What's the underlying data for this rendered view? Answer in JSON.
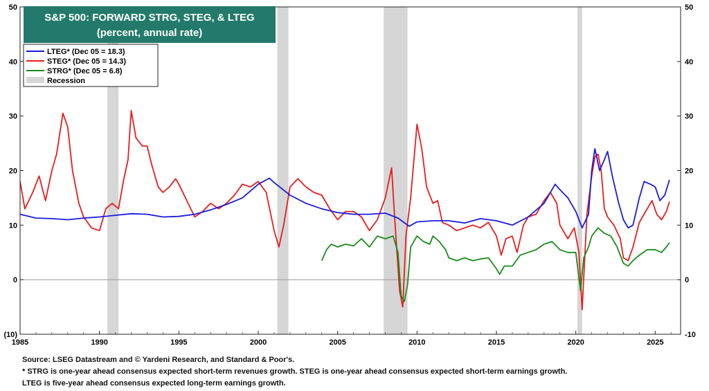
{
  "chart_data": {
    "type": "line",
    "title": "S&P 500: FORWARD STRG, STEG, & LTEG",
    "subtitle": "(percent, annual rate)",
    "xlim": [
      1985,
      2026.6
    ],
    "ylim": [
      -10,
      50
    ],
    "x_ticks": [
      1985,
      1990,
      1995,
      2000,
      2005,
      2010,
      2015,
      2020,
      2025
    ],
    "y_ticks": [
      -10,
      0,
      10,
      20,
      30,
      40,
      50
    ],
    "y_tick_labels_left": [
      "(10)",
      "0",
      "10",
      "20",
      "30",
      "40",
      "50"
    ],
    "y_tick_labels_right": [
      "-10",
      "0",
      "10",
      "20",
      "30",
      "40",
      "50"
    ],
    "grid": false,
    "zero_line": 0,
    "legend_position": "top-left",
    "recessions": [
      [
        1990.5,
        1991.2
      ],
      [
        2001.2,
        2001.9
      ],
      [
        2007.9,
        2009.4
      ],
      [
        2020.1,
        2020.4
      ]
    ],
    "series": [
      {
        "name": "LTEG* (Dec 05 = 18.3)",
        "color": "#1a1adc",
        "points": [
          [
            1985,
            12.0
          ],
          [
            1986,
            11.3
          ],
          [
            1987,
            11.2
          ],
          [
            1988,
            11.0
          ],
          [
            1989,
            11.3
          ],
          [
            1990,
            11.5
          ],
          [
            1991,
            11.8
          ],
          [
            1992,
            12.1
          ],
          [
            1993,
            12.0
          ],
          [
            1994,
            11.5
          ],
          [
            1995,
            11.6
          ],
          [
            1996,
            12.0
          ],
          [
            1997,
            12.8
          ],
          [
            1998,
            13.8
          ],
          [
            1999,
            15.0
          ],
          [
            2000,
            17.5
          ],
          [
            2000.7,
            18.6
          ],
          [
            2001,
            17.8
          ],
          [
            2002,
            15.5
          ],
          [
            2003,
            14.0
          ],
          [
            2004,
            13.0
          ],
          [
            2005,
            12.3
          ],
          [
            2006,
            12.0
          ],
          [
            2007,
            12.0
          ],
          [
            2008,
            12.2
          ],
          [
            2008.8,
            11.3
          ],
          [
            2009.5,
            9.8
          ],
          [
            2010,
            10.6
          ],
          [
            2011,
            10.8
          ],
          [
            2012,
            10.8
          ],
          [
            2013,
            10.4
          ],
          [
            2014,
            11.2
          ],
          [
            2015,
            10.8
          ],
          [
            2016,
            10.0
          ],
          [
            2017,
            11.5
          ],
          [
            2018,
            14.0
          ],
          [
            2018.7,
            17.5
          ],
          [
            2019,
            16.5
          ],
          [
            2019.5,
            15.0
          ],
          [
            2020,
            12.5
          ],
          [
            2020.4,
            9.5
          ],
          [
            2020.8,
            12.0
          ],
          [
            2021.0,
            20.0
          ],
          [
            2021.2,
            24.0
          ],
          [
            2021.5,
            20.0
          ],
          [
            2021.8,
            22.0
          ],
          [
            2022,
            23.5
          ],
          [
            2022.3,
            19.0
          ],
          [
            2022.7,
            14.0
          ],
          [
            2023,
            11.0
          ],
          [
            2023.3,
            9.5
          ],
          [
            2023.6,
            10.0
          ],
          [
            2024.0,
            15.0
          ],
          [
            2024.3,
            18.0
          ],
          [
            2024.7,
            17.5
          ],
          [
            2025.0,
            17.0
          ],
          [
            2025.3,
            14.5
          ],
          [
            2025.6,
            15.5
          ],
          [
            2025.9,
            18.3
          ]
        ]
      },
      {
        "name": "STEG* (Dec 05 = 14.3)",
        "color": "#e81c1c",
        "points": [
          [
            1985,
            18.0
          ],
          [
            1985.3,
            13.0
          ],
          [
            1985.8,
            16.0
          ],
          [
            1986.2,
            19.0
          ],
          [
            1986.6,
            14.5
          ],
          [
            1987,
            20.0
          ],
          [
            1987.3,
            23.0
          ],
          [
            1987.7,
            30.5
          ],
          [
            1988,
            28.0
          ],
          [
            1988.3,
            20.0
          ],
          [
            1988.7,
            14.0
          ],
          [
            1989,
            11.5
          ],
          [
            1989.5,
            9.5
          ],
          [
            1990,
            9.0
          ],
          [
            1990.4,
            13.0
          ],
          [
            1990.8,
            14.0
          ],
          [
            1991.2,
            13.0
          ],
          [
            1991.5,
            18.0
          ],
          [
            1991.8,
            22.0
          ],
          [
            1992,
            31.0
          ],
          [
            1992.3,
            26.0
          ],
          [
            1992.7,
            24.5
          ],
          [
            1993,
            24.5
          ],
          [
            1993.3,
            21.0
          ],
          [
            1993.7,
            17.0
          ],
          [
            1994,
            16.0
          ],
          [
            1994.4,
            17.0
          ],
          [
            1994.8,
            18.5
          ],
          [
            1995,
            17.5
          ],
          [
            1995.5,
            14.5
          ],
          [
            1996,
            11.5
          ],
          [
            1996.5,
            12.5
          ],
          [
            1997,
            14.0
          ],
          [
            1997.5,
            13.0
          ],
          [
            1998,
            14.0
          ],
          [
            1998.5,
            15.5
          ],
          [
            1999,
            17.5
          ],
          [
            1999.5,
            17.0
          ],
          [
            2000,
            18.0
          ],
          [
            2000.5,
            16.0
          ],
          [
            2001,
            9.0
          ],
          [
            2001.3,
            6.0
          ],
          [
            2001.6,
            10.0
          ],
          [
            2002,
            17.0
          ],
          [
            2002.5,
            18.5
          ],
          [
            2003,
            17.0
          ],
          [
            2003.5,
            16.0
          ],
          [
            2004,
            15.5
          ],
          [
            2004.5,
            13.0
          ],
          [
            2005,
            11.0
          ],
          [
            2005.5,
            12.5
          ],
          [
            2006,
            12.5
          ],
          [
            2006.5,
            11.5
          ],
          [
            2007,
            9.0
          ],
          [
            2007.5,
            11.0
          ],
          [
            2008,
            15.0
          ],
          [
            2008.4,
            20.5
          ],
          [
            2008.6,
            11.0
          ],
          [
            2008.9,
            -2.0
          ],
          [
            2009.1,
            -5.0
          ],
          [
            2009.3,
            8.0
          ],
          [
            2009.6,
            15.0
          ],
          [
            2010,
            28.5
          ],
          [
            2010.3,
            24.0
          ],
          [
            2010.6,
            17.0
          ],
          [
            2011,
            14.0
          ],
          [
            2011.3,
            14.5
          ],
          [
            2011.6,
            10.5
          ],
          [
            2012,
            10.0
          ],
          [
            2012.5,
            9.0
          ],
          [
            2013,
            9.5
          ],
          [
            2013.5,
            10.0
          ],
          [
            2014,
            9.5
          ],
          [
            2014.5,
            10.5
          ],
          [
            2015,
            8.0
          ],
          [
            2015.3,
            4.5
          ],
          [
            2015.6,
            7.5
          ],
          [
            2016,
            8.0
          ],
          [
            2016.3,
            5.0
          ],
          [
            2016.7,
            10.0
          ],
          [
            2017,
            11.5
          ],
          [
            2017.5,
            12.0
          ],
          [
            2018,
            14.5
          ],
          [
            2018.4,
            16.0
          ],
          [
            2018.8,
            14.0
          ],
          [
            2019,
            10.0
          ],
          [
            2019.5,
            7.5
          ],
          [
            2019.9,
            9.5
          ],
          [
            2020.2,
            5.0
          ],
          [
            2020.4,
            -5.5
          ],
          [
            2020.7,
            12.0
          ],
          [
            2021,
            19.0
          ],
          [
            2021.2,
            22.5
          ],
          [
            2021.4,
            23.0
          ],
          [
            2021.6,
            20.0
          ],
          [
            2021.8,
            13.0
          ],
          [
            2022,
            11.5
          ],
          [
            2022.4,
            10.0
          ],
          [
            2022.8,
            7.5
          ],
          [
            2023,
            4.0
          ],
          [
            2023.3,
            3.5
          ],
          [
            2023.6,
            6.0
          ],
          [
            2024,
            10.5
          ],
          [
            2024.4,
            12.5
          ],
          [
            2024.8,
            14.5
          ],
          [
            2025.1,
            12.0
          ],
          [
            2025.4,
            11.0
          ],
          [
            2025.7,
            12.5
          ],
          [
            2025.9,
            14.3
          ]
        ]
      },
      {
        "name": "STRG* (Dec 05 = 6.8)",
        "color": "#1a8a1a",
        "points": [
          [
            2004.0,
            3.5
          ],
          [
            2004.3,
            5.5
          ],
          [
            2004.6,
            6.5
          ],
          [
            2005,
            6.0
          ],
          [
            2005.5,
            6.5
          ],
          [
            2006,
            6.2
          ],
          [
            2006.5,
            7.5
          ],
          [
            2007,
            6.0
          ],
          [
            2007.5,
            8.0
          ],
          [
            2008,
            7.5
          ],
          [
            2008.5,
            8.0
          ],
          [
            2008.8,
            5.0
          ],
          [
            2009,
            -3.0
          ],
          [
            2009.2,
            -4.0
          ],
          [
            2009.4,
            -1.0
          ],
          [
            2009.6,
            6.0
          ],
          [
            2010,
            8.0
          ],
          [
            2010.4,
            7.0
          ],
          [
            2010.8,
            6.5
          ],
          [
            2011,
            8.0
          ],
          [
            2011.4,
            7.0
          ],
          [
            2011.8,
            5.5
          ],
          [
            2012,
            4.0
          ],
          [
            2012.5,
            3.5
          ],
          [
            2013,
            4.0
          ],
          [
            2013.5,
            3.5
          ],
          [
            2014,
            3.8
          ],
          [
            2014.5,
            4.0
          ],
          [
            2015,
            2.0
          ],
          [
            2015.2,
            1.0
          ],
          [
            2015.5,
            2.5
          ],
          [
            2016,
            2.5
          ],
          [
            2016.5,
            4.5
          ],
          [
            2017,
            5.0
          ],
          [
            2017.5,
            5.5
          ],
          [
            2018,
            6.5
          ],
          [
            2018.5,
            7.0
          ],
          [
            2019,
            5.5
          ],
          [
            2019.5,
            5.0
          ],
          [
            2020,
            5.0
          ],
          [
            2020.3,
            -2.0
          ],
          [
            2020.5,
            4.0
          ],
          [
            2020.8,
            6.0
          ],
          [
            2021,
            8.0
          ],
          [
            2021.4,
            9.5
          ],
          [
            2021.8,
            8.5
          ],
          [
            2022.2,
            8.0
          ],
          [
            2022.6,
            6.0
          ],
          [
            2023,
            3.0
          ],
          [
            2023.3,
            2.5
          ],
          [
            2023.6,
            3.5
          ],
          [
            2024,
            4.5
          ],
          [
            2024.5,
            5.5
          ],
          [
            2025,
            5.5
          ],
          [
            2025.4,
            5.0
          ],
          [
            2025.7,
            6.0
          ],
          [
            2025.9,
            6.8
          ]
        ]
      }
    ],
    "legend": [
      {
        "label": "LTEG* (Dec 05 = 18.3)",
        "color": "#1a1adc",
        "kind": "line"
      },
      {
        "label": "STEG* (Dec 05 = 14.3)",
        "color": "#e81c1c",
        "kind": "line"
      },
      {
        "label": "STRG* (Dec 05 = 6.8)",
        "color": "#1a8a1a",
        "kind": "line"
      },
      {
        "label": "Recession",
        "color": "#d6d6d6",
        "kind": "box"
      }
    ],
    "title_bg": "#237a6b",
    "recession_color": "#d6d6d6"
  },
  "footnotes": {
    "source": "Source: LSEG Datastream and © Yardeni Research, and Standard & Poor's.",
    "note1": "* STRG is one-year ahead consensus expected short-term revenues growth. STEG is one-year ahead consensus expected short-term earnings growth.",
    "note2": "LTEG is five-year ahead consensus expected long-term earnings growth."
  }
}
